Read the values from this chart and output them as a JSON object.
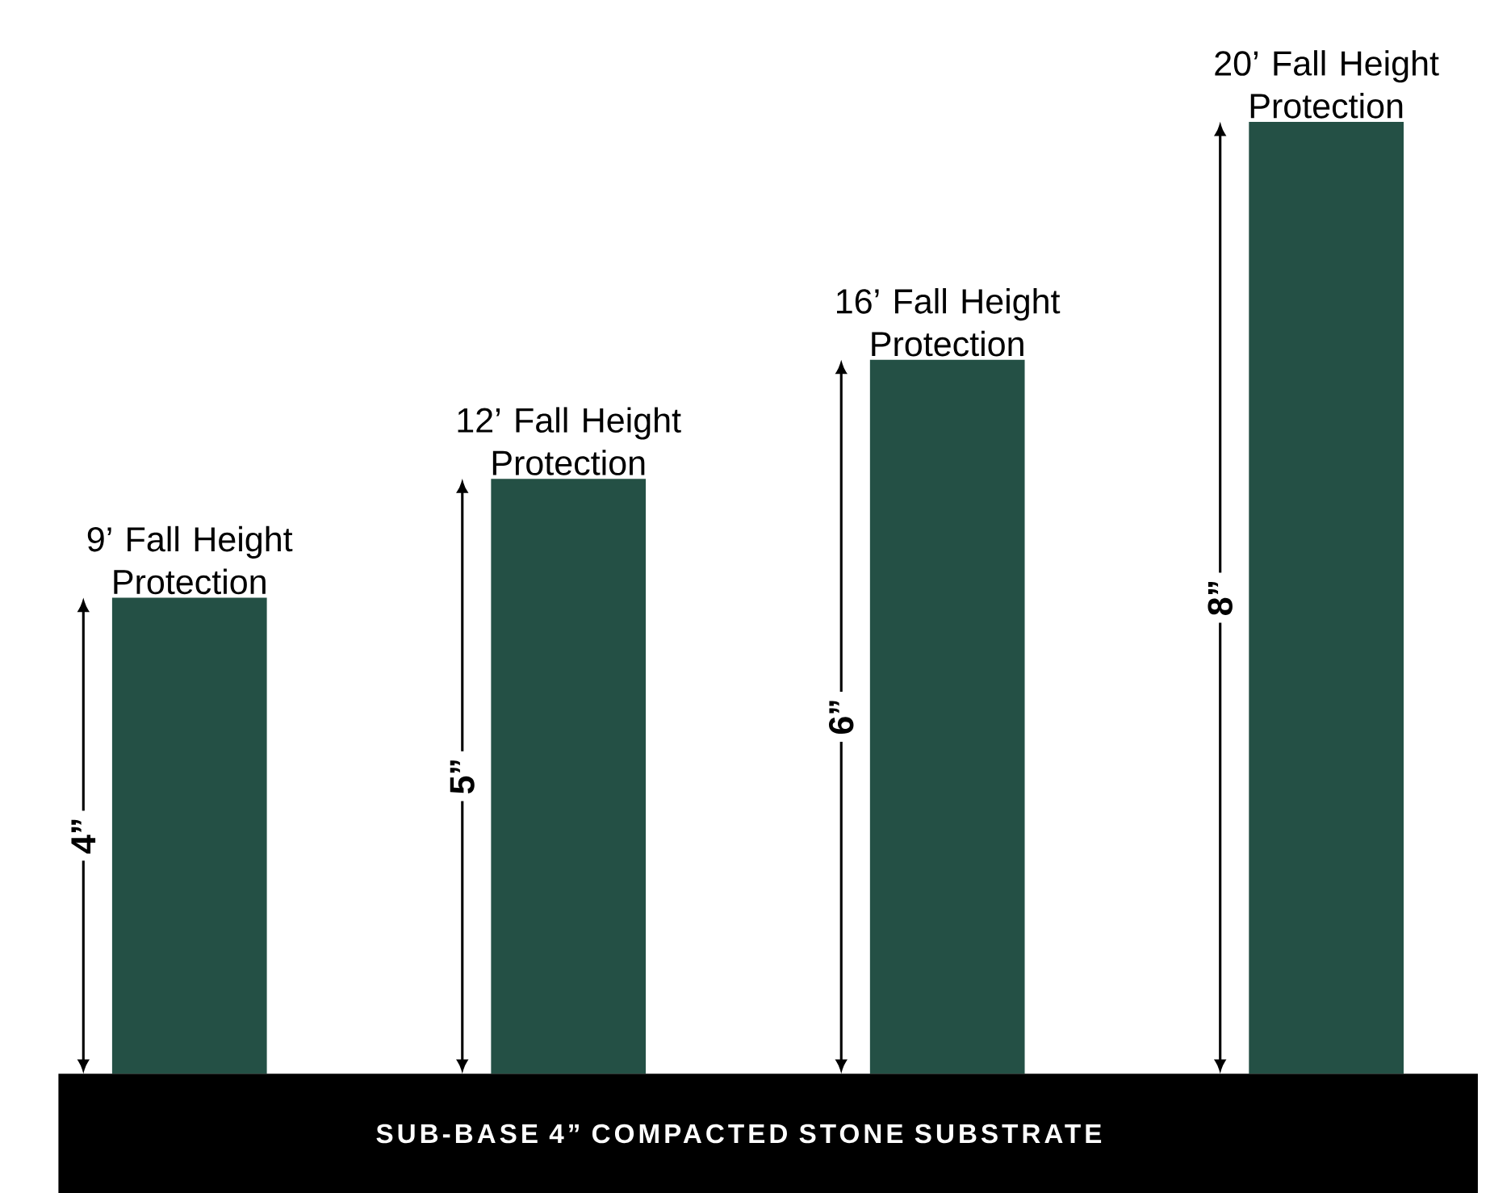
{
  "chart_data": {
    "type": "bar",
    "categories": [
      "9’ Fall Height Protection",
      "12’ Fall Height Protection",
      "16’ Fall Height Protection",
      "20’ Fall Height Protection"
    ],
    "values": [
      4,
      5,
      6,
      8
    ],
    "value_labels": [
      "4”",
      "5”",
      "6”",
      "8”"
    ],
    "color": "#245045",
    "annotations": [
      "SUB-BASE 4” COMPACTED STONE SUBSTRATE"
    ]
  }
}
